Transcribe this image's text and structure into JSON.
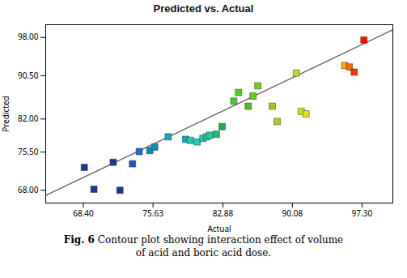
{
  "chart_data": {
    "type": "scatter",
    "title": "Predicted vs. Actual",
    "xlabel": "Actual",
    "ylabel": "Predicted",
    "caption": [
      [
        "Fig. 6",
        " Contour plot showing interaction effect of volume"
      ],
      [
        "of acid and boric acid dose."
      ]
    ],
    "xlim": [
      64.5,
      100.5
    ],
    "ylim": [
      65.5,
      100.5
    ],
    "xticks": [
      {
        "value": 68.4,
        "label": "68.40"
      },
      75.63,
      82.88,
      90.08,
      {
        "value": 97.3,
        "label": "97.30"
      }
    ],
    "yticks": [
      {
        "value": 68,
        "label": "68.00"
      },
      {
        "value": 75.5,
        "label": "75.50"
      },
      {
        "value": 82,
        "label": "82.00"
      },
      {
        "value": 90.5,
        "label": "90.50"
      },
      {
        "value": 98,
        "label": "98.00"
      }
    ],
    "series": [
      {
        "type": "scatter",
        "marker": "square",
        "x": [
          68.5,
          69.5,
          71.5,
          72.2,
          73.5,
          74.2,
          75.3,
          75.8,
          77.2,
          79.0,
          79.5,
          80.2,
          80.8,
          81.2,
          81.5,
          82.2,
          82.8,
          84.0,
          84.5,
          85.5,
          86.0,
          86.5,
          88.0,
          88.5,
          90.5,
          91.0,
          91.5,
          95.5,
          96.0,
          96.5,
          97.5
        ],
        "values": [
          72.5,
          68.2,
          73.5,
          68.0,
          73.2,
          75.6,
          75.8,
          76.5,
          78.5,
          78.0,
          77.8,
          77.5,
          78.2,
          78.5,
          78.8,
          79.0,
          80.5,
          85.5,
          87.2,
          84.5,
          86.5,
          88.5,
          84.5,
          81.5,
          91.0,
          83.5,
          83.0,
          92.5,
          92.2,
          91.2,
          97.5
        ],
        "colors": [
          "#1c3a8a",
          "#1c3a8a",
          "#1c3a8a",
          "#1c3a8a",
          "#2255bb",
          "#2266cc",
          "#1188bb",
          "#1188bb",
          "#11aabb",
          "#11aabb",
          "#22ccbb",
          "#22ccbb",
          "#22ccaa",
          "#22cc99",
          "#22cc99",
          "#22bb77",
          "#22aa55",
          "#44cc33",
          "#55cc22",
          "#55bb22",
          "#66cc22",
          "#77cc22",
          "#99cc22",
          "#aacc22",
          "#bbdd22",
          "#ccdd22",
          "#dddd22",
          "#ffaa00",
          "#ff6600",
          "#ff3300",
          "#ee1100"
        ]
      },
      {
        "type": "line",
        "color": "#666666",
        "x": [
          64.5,
          100.5
        ],
        "values": [
          67.0,
          99.5
        ]
      }
    ]
  }
}
